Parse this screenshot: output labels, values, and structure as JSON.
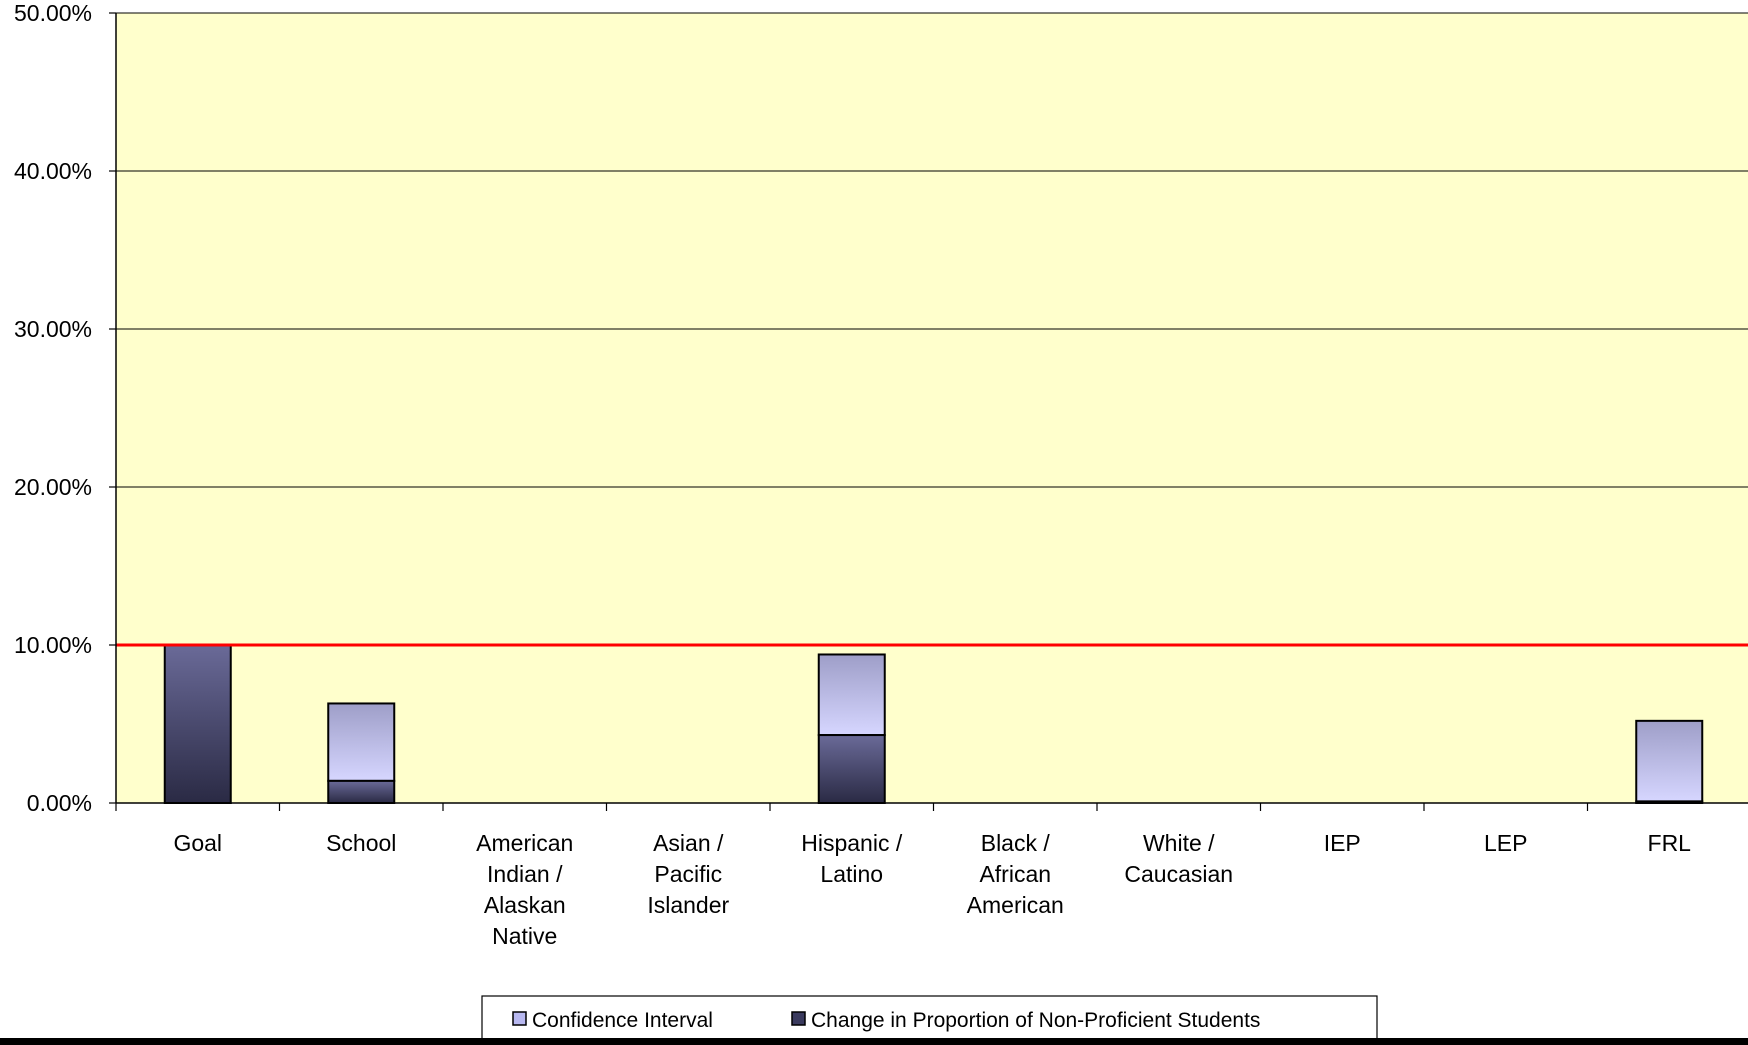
{
  "chart_data": {
    "type": "bar",
    "stacked": true,
    "categories": [
      [
        "Goal"
      ],
      [
        "School"
      ],
      [
        "American",
        "Indian /",
        "Alaskan",
        "Native"
      ],
      [
        "Asian /",
        "Pacific",
        "Islander"
      ],
      [
        "Hispanic /",
        "Latino"
      ],
      [
        "Black /",
        "African",
        "American"
      ],
      [
        "White /",
        "Caucasian"
      ],
      [
        "IEP"
      ],
      [
        "LEP"
      ],
      [
        "FRL"
      ]
    ],
    "series": [
      {
        "name": "Change in Proportion of Non-Proficient Students",
        "color": "#3a3a5e",
        "values": [
          10.0,
          1.4,
          0,
          0,
          4.3,
          0,
          0,
          0,
          0,
          0.1
        ]
      },
      {
        "name": "Confidence Interval",
        "color": "#b8b8f0",
        "values": [
          0,
          4.9,
          0,
          0,
          5.1,
          0,
          0,
          0,
          0,
          5.1
        ]
      }
    ],
    "target_line": {
      "value": 10.0,
      "color": "#ff0000"
    },
    "ylim": [
      0,
      50
    ],
    "yticks": [
      "0.00%",
      "10.00%",
      "20.00%",
      "30.00%",
      "40.00%",
      "50.00%"
    ],
    "grid": true,
    "plot_background": "#ffffcc",
    "legend": {
      "position": "bottom",
      "entries": [
        "Confidence Interval",
        "Change in Proportion of Non-Proficient Students"
      ]
    }
  }
}
